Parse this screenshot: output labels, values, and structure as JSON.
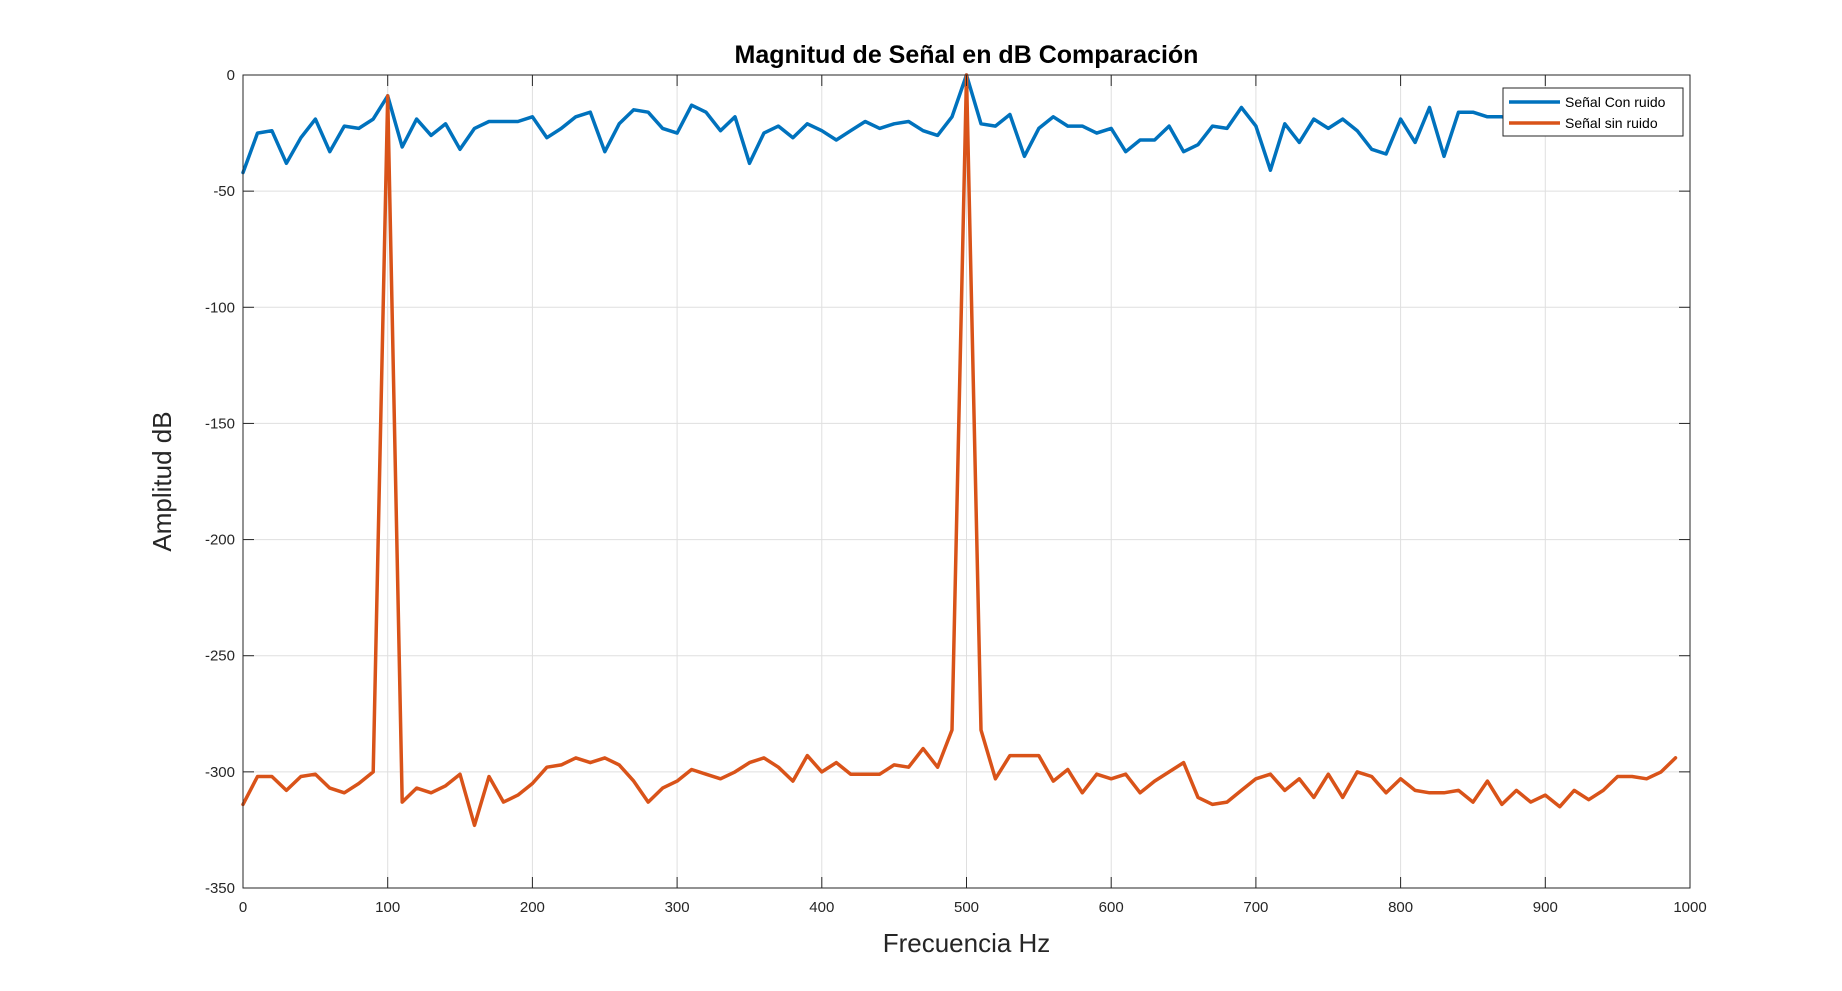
{
  "colors": {
    "background": "#ffffff",
    "axis": "#262626",
    "grid": "#dfdfdf",
    "con_ruido": "#0072BD",
    "sin_ruido": "#D95319"
  },
  "chart_data": {
    "type": "line",
    "title": "Magnitud de Señal en dB Comparación",
    "xlabel": "Frecuencia Hz",
    "ylabel": "Amplitud dB",
    "xlim": [
      0,
      1000
    ],
    "ylim": [
      -350,
      0
    ],
    "xticks": [
      0,
      100,
      200,
      300,
      400,
      500,
      600,
      700,
      800,
      900,
      1000
    ],
    "yticks": [
      0,
      -50,
      -100,
      -150,
      -200,
      -250,
      -300,
      -350
    ],
    "grid": true,
    "legend_position": "top-right",
    "x": [
      0,
      10,
      20,
      30,
      40,
      50,
      60,
      70,
      80,
      90,
      100,
      110,
      120,
      130,
      140,
      150,
      160,
      170,
      180,
      190,
      200,
      210,
      220,
      230,
      240,
      250,
      260,
      270,
      280,
      290,
      300,
      310,
      320,
      330,
      340,
      350,
      360,
      370,
      380,
      390,
      400,
      410,
      420,
      430,
      440,
      450,
      460,
      470,
      480,
      490,
      500,
      510,
      520,
      530,
      540,
      550,
      560,
      570,
      580,
      590,
      600,
      610,
      620,
      630,
      640,
      650,
      660,
      670,
      680,
      690,
      700,
      710,
      720,
      730,
      740,
      750,
      760,
      770,
      780,
      790,
      800,
      810,
      820,
      830,
      840,
      850,
      860,
      870,
      880,
      890,
      900,
      910,
      920,
      930,
      940,
      950,
      960,
      970,
      980,
      990
    ],
    "series": [
      {
        "name": "Señal Con ruido",
        "values": [
          -42,
          -25,
          -24,
          -38,
          -27,
          -19,
          -33,
          -22,
          -23,
          -19,
          -9,
          -31,
          -19,
          -26,
          -21,
          -32,
          -23,
          -20,
          -20,
          -20,
          -18,
          -27,
          -23,
          -18,
          -16,
          -33,
          -21,
          -15,
          -16,
          -23,
          -25,
          -13,
          -16,
          -24,
          -18,
          -38,
          -25,
          -22,
          -27,
          -21,
          -24,
          -28,
          -24,
          -20,
          -23,
          -21,
          -20,
          -24,
          -26,
          -18,
          0,
          -21,
          -22,
          -17,
          -35,
          -23,
          -18,
          -22,
          -22,
          -25,
          -23,
          -33,
          -28,
          -28,
          -22,
          -33,
          -30,
          -22,
          -23,
          -14,
          -22,
          -41,
          -21,
          -29,
          -19,
          -23,
          -19,
          -24,
          -32,
          -34,
          -19,
          -29,
          -14,
          -35,
          -16,
          -16,
          -18,
          -18,
          -19,
          -20,
          -20,
          -20,
          -21,
          -21,
          -21,
          -21,
          -21,
          -21,
          -21,
          -24
        ]
      },
      {
        "name": "Señal sin ruido",
        "values": [
          -314,
          -302,
          -302,
          -308,
          -302,
          -301,
          -307,
          -309,
          -305,
          -300,
          -9,
          -313,
          -307,
          -309,
          -306,
          -301,
          -323,
          -302,
          -313,
          -310,
          -305,
          -298,
          -297,
          -294,
          -296,
          -294,
          -297,
          -304,
          -313,
          -307,
          -304,
          -299,
          -301,
          -303,
          -300,
          -296,
          -294,
          -298,
          -304,
          -293,
          -300,
          -296,
          -301,
          -301,
          -301,
          -297,
          -298,
          -290,
          -298,
          -282,
          0,
          -282,
          -303,
          -293,
          -293,
          -293,
          -304,
          -299,
          -309,
          -301,
          -303,
          -301,
          -309,
          -304,
          -300,
          -296,
          -311,
          -314,
          -313,
          -308,
          -303,
          -301,
          -308,
          -303,
          -311,
          -301,
          -311,
          -300,
          -302,
          -309,
          -303,
          -308,
          -309,
          -309,
          -308,
          -313,
          -304,
          -314,
          -308,
          -313,
          -310,
          -315,
          -308,
          -312,
          -308,
          -302,
          -302,
          -303,
          -300,
          -294
        ]
      }
    ]
  }
}
